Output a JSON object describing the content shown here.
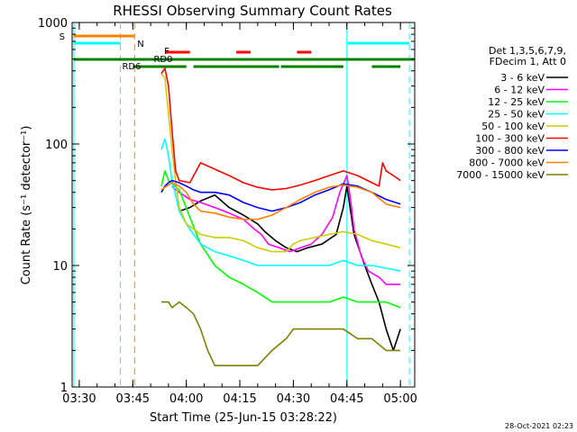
{
  "chart_data": {
    "type": "line",
    "title": "RHESSI Observing Summary Count Rates",
    "xlabel": "Start Time (25-Jun-15 03:28:22)",
    "ylabel": "Count Rate (s⁻¹ detector⁻¹)",
    "yscale": "log",
    "ylim": [
      1,
      1000
    ],
    "xlim_minutes_after_0328": [
      0,
      96
    ],
    "x_ticks": [
      {
        "label": "03:30",
        "t": 2
      },
      {
        "label": "03:45",
        "t": 17
      },
      {
        "label": "04:00",
        "t": 32
      },
      {
        "label": "04:15",
        "t": 47
      },
      {
        "label": "04:30",
        "t": 62
      },
      {
        "label": "04:45",
        "t": 77
      },
      {
        "label": "05:00",
        "t": 92
      }
    ],
    "y_ticks": [
      {
        "label": "1",
        "v": 1
      },
      {
        "label": "10",
        "v": 10
      },
      {
        "label": "100",
        "v": 100
      },
      {
        "label": "1000",
        "v": 1000
      }
    ],
    "legend_header": [
      "Det 1,3,5,6,7,9,",
      "FDecim 1, Att 0"
    ],
    "legend_placement": "right",
    "series": [
      {
        "name": "3 - 6 keV",
        "color": "#000000",
        "t": [
          22,
          23,
          25,
          27,
          30,
          33,
          36,
          40,
          44,
          48,
          52,
          54,
          57,
          60,
          63,
          66,
          70,
          74,
          76,
          77,
          79,
          82,
          84,
          86,
          88,
          90,
          92
        ],
        "v": [
          null,
          null,
          null,
          null,
          28,
          30,
          34,
          38,
          30,
          26,
          22,
          19,
          16,
          14,
          13,
          14,
          15,
          18,
          30,
          45,
          18,
          10,
          7,
          5,
          3,
          2,
          3
        ]
      },
      {
        "name": "6 - 12 keV",
        "color": "#ff00ff",
        "t": [
          22,
          23,
          24,
          25,
          26,
          27,
          28,
          29,
          30,
          33,
          36,
          40,
          44,
          48,
          51,
          53,
          55,
          58,
          61,
          64,
          67,
          70,
          73,
          75,
          77,
          78,
          79,
          81,
          83,
          86,
          88,
          90,
          92
        ],
        "v": [
          null,
          null,
          null,
          null,
          null,
          null,
          45,
          42,
          40,
          35,
          33,
          30,
          27,
          24,
          20,
          18,
          15,
          14,
          13,
          14,
          15,
          18,
          25,
          40,
          55,
          35,
          20,
          12,
          9,
          8,
          7,
          7,
          7
        ]
      },
      {
        "name": "12 - 25 keV",
        "color": "#00ff00",
        "t": [
          22,
          23,
          24,
          25,
          26,
          27,
          30,
          33,
          36,
          40,
          44,
          48,
          52,
          56,
          60,
          64,
          68,
          72,
          76,
          80,
          84,
          88,
          92
        ],
        "v": [
          null,
          null,
          null,
          45,
          60,
          50,
          42,
          25,
          15,
          10,
          8,
          7,
          6,
          5,
          5,
          5,
          5,
          5,
          5.5,
          5,
          5,
          5,
          4.5
        ]
      },
      {
        "name": "25 - 50 keV",
        "color": "#00ffff",
        "t": [
          22,
          23,
          24,
          25,
          26,
          27,
          28,
          30,
          32,
          34,
          36,
          40,
          44,
          48,
          52,
          56,
          60,
          64,
          68,
          72,
          76,
          80,
          84,
          88,
          92
        ],
        "v": [
          null,
          null,
          null,
          90,
          110,
          80,
          50,
          28,
          22,
          18,
          15,
          13,
          12,
          11,
          10,
          10,
          10,
          10,
          10,
          10,
          11,
          10,
          10,
          9.5,
          9
        ]
      },
      {
        "name": "50 - 100 keV",
        "color": "#cccc00",
        "t": [
          22,
          23,
          24,
          25,
          26,
          27,
          28,
          29,
          30,
          32,
          34,
          36,
          40,
          44,
          48,
          52,
          56,
          60,
          62,
          64,
          68,
          72,
          76,
          80,
          84,
          88,
          92
        ],
        "v": [
          null,
          null,
          null,
          380,
          350,
          180,
          90,
          50,
          30,
          22,
          20,
          18,
          17,
          17,
          16,
          14,
          13,
          13,
          15,
          16,
          17,
          18,
          19,
          18,
          16,
          15,
          14
        ]
      },
      {
        "name": "100 - 300 keV",
        "color": "#ff0000",
        "t": [
          22,
          23,
          24,
          25,
          26,
          27,
          28,
          29,
          30,
          33,
          36,
          40,
          44,
          48,
          52,
          56,
          60,
          64,
          68,
          72,
          76,
          80,
          84,
          86,
          87,
          88,
          90,
          92
        ],
        "v": [
          null,
          null,
          null,
          380,
          420,
          300,
          130,
          60,
          50,
          48,
          70,
          62,
          55,
          48,
          44,
          42,
          43,
          46,
          50,
          55,
          60,
          55,
          48,
          45,
          70,
          60,
          55,
          50
        ]
      },
      {
        "name": "300 - 800 keV",
        "color": "#0000ff",
        "t": [
          22,
          23,
          24,
          25,
          26,
          27,
          28,
          30,
          32,
          34,
          36,
          40,
          44,
          48,
          52,
          56,
          60,
          64,
          68,
          72,
          76,
          80,
          84,
          88,
          92
        ],
        "v": [
          null,
          null,
          null,
          40,
          45,
          48,
          50,
          48,
          45,
          42,
          40,
          40,
          38,
          33,
          30,
          28,
          30,
          33,
          38,
          42,
          47,
          45,
          40,
          35,
          32
        ]
      },
      {
        "name": "800 - 7000 keV",
        "color": "#ff8000",
        "t": [
          22,
          23,
          24,
          25,
          26,
          27,
          28,
          30,
          32,
          34,
          36,
          40,
          44,
          48,
          52,
          56,
          60,
          64,
          68,
          72,
          76,
          80,
          84,
          88,
          92
        ],
        "v": [
          null,
          null,
          null,
          42,
          44,
          46,
          48,
          45,
          40,
          32,
          28,
          27,
          25,
          24,
          24,
          26,
          30,
          35,
          40,
          44,
          46,
          44,
          40,
          32,
          30
        ]
      },
      {
        "name": "7000 - 15000 keV",
        "color": "#808000",
        "t": [
          22,
          23,
          24,
          25,
          26,
          27,
          28,
          30,
          32,
          34,
          36,
          38,
          40,
          44,
          48,
          52,
          56,
          60,
          62,
          64,
          68,
          72,
          76,
          80,
          84,
          88,
          92
        ],
        "v": [
          null,
          null,
          null,
          5,
          5,
          5,
          4.5,
          5,
          4.5,
          4,
          3,
          2,
          1.5,
          1.5,
          1.5,
          1.5,
          2,
          2.5,
          3,
          3,
          3,
          3,
          3,
          2.5,
          2.5,
          2,
          2
        ]
      }
    ],
    "attenuator_and_mode_bars": [
      {
        "label": "S",
        "color": "#ff8000",
        "segments": [
          [
            0.5,
            17.5
          ]
        ]
      },
      {
        "label": "N",
        "color": "#00ffff",
        "segments": [
          [
            0.5,
            13.5
          ],
          [
            77,
            94.5
          ]
        ]
      },
      {
        "label": "F",
        "color": "#ff0000",
        "segments": [
          [
            26,
            33
          ],
          [
            46,
            50
          ],
          [
            63,
            67
          ]
        ]
      },
      {
        "label": "RD0",
        "color": "#008000",
        "segments": [
          [
            0.5,
            96
          ]
        ]
      },
      {
        "label": "RD6",
        "color": "#008000",
        "segments": [
          [
            17,
            32
          ],
          [
            34,
            58
          ],
          [
            58.5,
            76
          ],
          [
            84,
            92
          ]
        ]
      }
    ],
    "vertical_markers": [
      {
        "t": 0.5,
        "color": "#00ffff",
        "style": "solid"
      },
      {
        "t": 13.5,
        "color": "#00ffff",
        "style": "dashed"
      },
      {
        "t": 17.5,
        "color": "#ff8000",
        "style": "dashed"
      },
      {
        "t": 77,
        "color": "#00ffff",
        "style": "solid"
      },
      {
        "t": 94.5,
        "color": "#00ffff",
        "style": "dashed"
      }
    ],
    "grid": false
  },
  "footer": {
    "timestamp": "28-Oct-2021 02:23"
  }
}
